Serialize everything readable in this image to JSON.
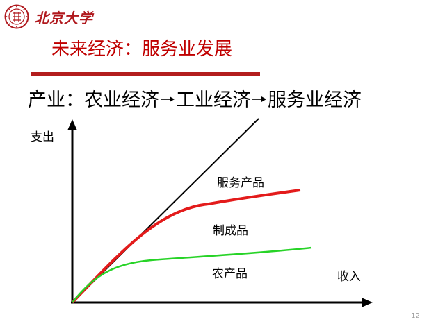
{
  "header": {
    "logo_text": "北京大学"
  },
  "title": "未来经济：服务业发展",
  "subtitle": {
    "prefix": "产业：",
    "stage_1": "农业经济",
    "stage_2": "工业经济",
    "stage_3": "服务业经济"
  },
  "diagram": {
    "y_axis_label": "支出",
    "x_axis_label": "收入",
    "curves": [
      {
        "label": "服务产品",
        "color": "#000000"
      },
      {
        "label": "制成品",
        "color": "#e31b1b"
      },
      {
        "label": "农产品",
        "color": "#27d327"
      }
    ]
  },
  "colors": {
    "brand_red": "#b0191e",
    "title_red": "#c00000"
  },
  "page_number": "12"
}
